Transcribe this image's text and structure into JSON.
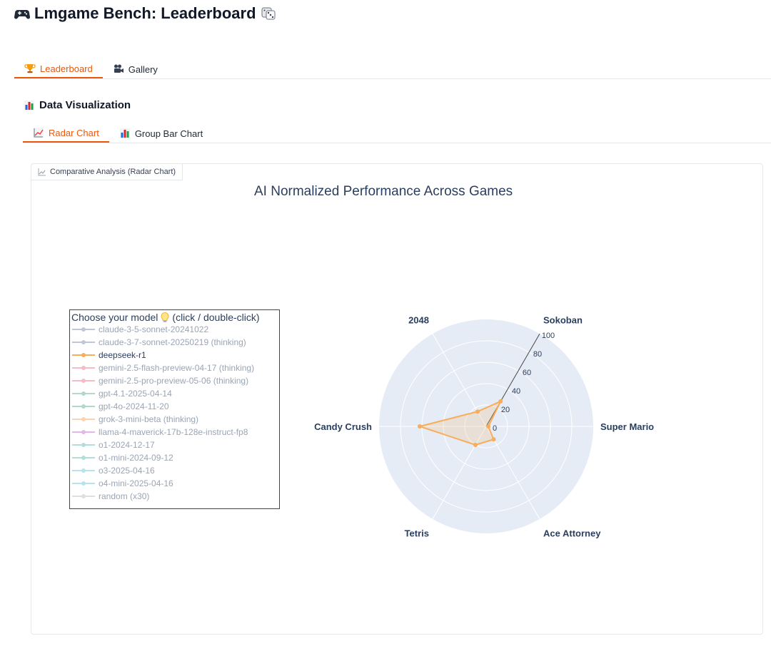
{
  "app": {
    "title": "Lmgame Bench: Leaderboard"
  },
  "tabs": [
    {
      "label": "Leaderboard",
      "icon": "trophy-icon",
      "active": true
    },
    {
      "label": "Gallery",
      "icon": "video-camera-icon",
      "active": false
    }
  ],
  "section": {
    "title": "Data Visualization",
    "icon": "bar-chart-icon"
  },
  "subtabs": [
    {
      "label": "Radar Chart",
      "icon": "line-chart-icon",
      "active": true
    },
    {
      "label": "Group Bar Chart",
      "icon": "bar-chart-icon",
      "active": false
    }
  ],
  "panel": {
    "label": "Comparative Analysis (Radar Chart)"
  },
  "legend": {
    "title": "Choose your model",
    "hint": "(click / double-click)",
    "items": [
      {
        "name": "claude-3-5-sonnet-20241022",
        "color": "#c0c8d8",
        "active": false
      },
      {
        "name": "claude-3-7-sonnet-20250219 (thinking)",
        "color": "#c0c8d8",
        "active": false
      },
      {
        "name": "deepseek-r1",
        "color": "#f7ad5a",
        "active": true
      },
      {
        "name": "gemini-2.5-flash-preview-04-17 (thinking)",
        "color": "#f6bcc6",
        "active": false
      },
      {
        "name": "gemini-2.5-pro-preview-05-06 (thinking)",
        "color": "#f6bcc6",
        "active": false
      },
      {
        "name": "gpt-4.1-2025-04-14",
        "color": "#b2d8cd",
        "active": false
      },
      {
        "name": "gpt-4o-2024-11-20",
        "color": "#b2d8cd",
        "active": false
      },
      {
        "name": "grok-3-mini-beta (thinking)",
        "color": "#fcd3b0",
        "active": false
      },
      {
        "name": "llama-4-maverick-17b-128e-instruct-fp8",
        "color": "#e3b8e8",
        "active": false
      },
      {
        "name": "o1-2024-12-17",
        "color": "#b2ddd8",
        "active": false
      },
      {
        "name": "o1-mini-2024-09-12",
        "color": "#b2ddd8",
        "active": false
      },
      {
        "name": "o3-2025-04-16",
        "color": "#b7e3ec",
        "active": false
      },
      {
        "name": "o4-mini-2025-04-16",
        "color": "#b7e3ec",
        "active": false
      },
      {
        "name": "random (x30)",
        "color": "#dfdfdf",
        "active": false
      }
    ]
  },
  "chart_data": {
    "type": "radar",
    "title": "AI Normalized Performance Across Games",
    "categories": [
      "Super Mario",
      "Sokoban",
      "2048",
      "Candy Crush",
      "Tetris",
      "Ace Attorney"
    ],
    "radial_ticks": [
      0,
      20,
      40,
      60,
      80,
      100
    ],
    "radial_range": [
      0,
      100
    ],
    "grid": true,
    "legend_position": "left",
    "series": [
      {
        "name": "deepseek-r1",
        "color": "#f7ad5a",
        "values": [
          2,
          27,
          16,
          62,
          20,
          14
        ]
      }
    ]
  },
  "colors": {
    "accent": "#ea580c",
    "polar_bg": "#e5ecf6",
    "text": "#2a3f5f"
  }
}
